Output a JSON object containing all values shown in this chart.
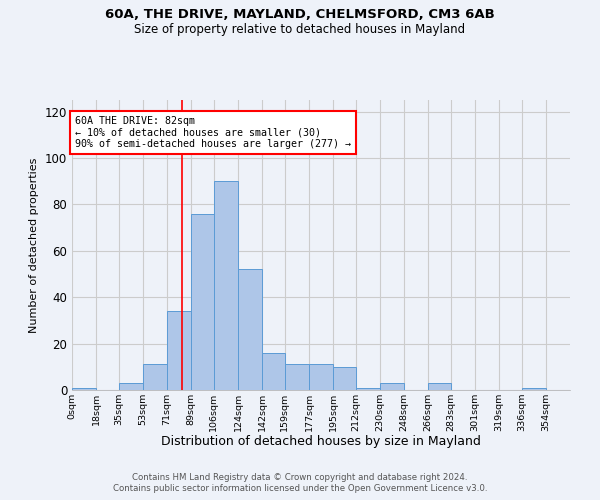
{
  "title1": "60A, THE DRIVE, MAYLAND, CHELMSFORD, CM3 6AB",
  "title2": "Size of property relative to detached houses in Mayland",
  "xlabel": "Distribution of detached houses by size in Mayland",
  "ylabel": "Number of detached properties",
  "bar_values": [
    1,
    0,
    3,
    11,
    34,
    76,
    90,
    52,
    16,
    11,
    11,
    10,
    1,
    3,
    0,
    3,
    0,
    0,
    0,
    1,
    0
  ],
  "bin_edges": [
    0,
    18,
    35,
    53,
    71,
    89,
    106,
    124,
    142,
    159,
    177,
    195,
    212,
    230,
    248,
    266,
    283,
    301,
    319,
    336,
    354,
    372
  ],
  "tick_labels": [
    "0sqm",
    "18sqm",
    "35sqm",
    "53sqm",
    "71sqm",
    "89sqm",
    "106sqm",
    "124sqm",
    "142sqm",
    "159sqm",
    "177sqm",
    "195sqm",
    "212sqm",
    "230sqm",
    "248sqm",
    "266sqm",
    "283sqm",
    "301sqm",
    "319sqm",
    "336sqm",
    "354sqm"
  ],
  "bar_color": "#aec6e8",
  "bar_edge_color": "#5b9bd5",
  "grid_color": "#cccccc",
  "vline_x": 82,
  "vline_color": "red",
  "annotation_text": "60A THE DRIVE: 82sqm\n← 10% of detached houses are smaller (30)\n90% of semi-detached houses are larger (277) →",
  "annotation_box_color": "white",
  "annotation_box_edgecolor": "red",
  "ylim": [
    0,
    125
  ],
  "yticks": [
    0,
    20,
    40,
    60,
    80,
    100,
    120
  ],
  "background_color": "#eef2f9",
  "footer1": "Contains HM Land Registry data © Crown copyright and database right 2024.",
  "footer2": "Contains public sector information licensed under the Open Government Licence v3.0."
}
